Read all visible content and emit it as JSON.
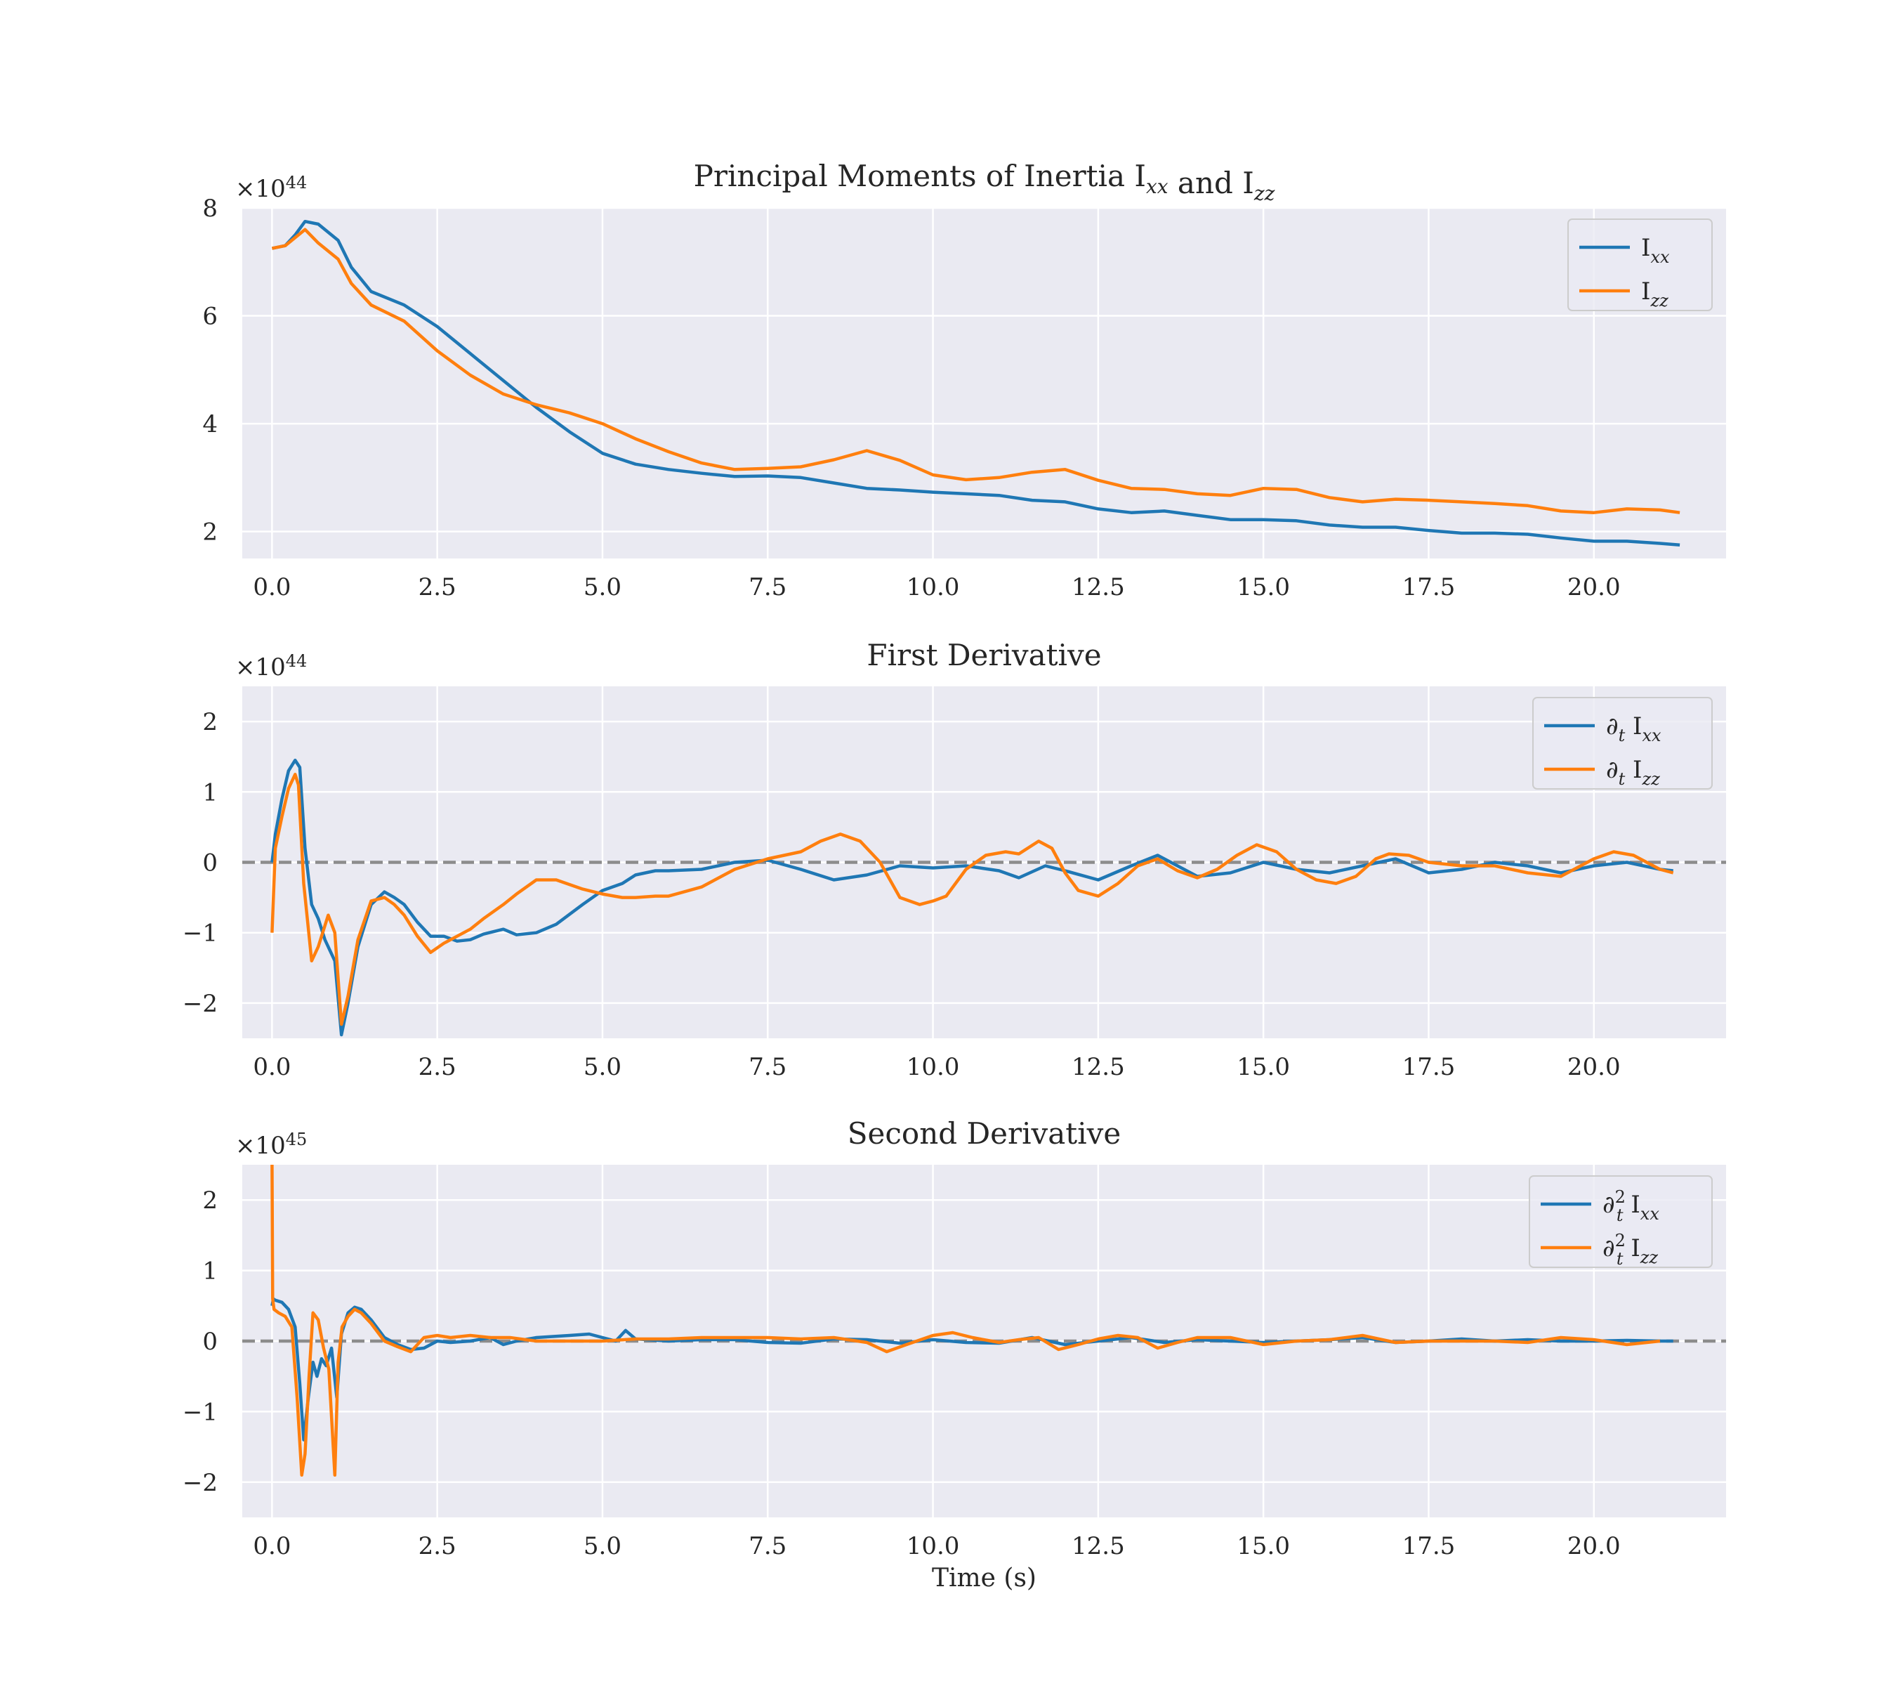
{
  "figure": {
    "xlabel": "Time (s)",
    "colors": {
      "Ixx": "#1f77b4",
      "Izz": "#ff7f0e",
      "zero_line": "#8c8c8c",
      "axes_bg": "#eaeaf2",
      "grid": "#ffffff"
    }
  },
  "chart_data": [
    {
      "type": "line",
      "title": "Principal Moments of Inertia Ixx and Izz",
      "xlabel": "",
      "ylabel": "",
      "multiplier": "×10^44",
      "xlim": [
        -0.45,
        22.0
      ],
      "ylim": [
        1.5,
        8.0
      ],
      "xticks": [
        "0.0",
        "2.5",
        "5.0",
        "7.5",
        "10.0",
        "12.5",
        "15.0",
        "17.5",
        "20.0"
      ],
      "yticks": [
        "2",
        "4",
        "6",
        "8"
      ],
      "legend": "top-right",
      "grid": true,
      "series": [
        {
          "name": "Ixx",
          "x": [
            0.0,
            0.2,
            0.35,
            0.5,
            0.7,
            1.0,
            1.2,
            1.5,
            2.0,
            2.5,
            3.0,
            3.5,
            4.0,
            4.5,
            5.0,
            5.5,
            6.0,
            6.5,
            7.0,
            7.5,
            8.0,
            8.5,
            9.0,
            9.5,
            10.0,
            10.5,
            11.0,
            11.5,
            12.0,
            12.5,
            13.0,
            13.5,
            14.0,
            14.5,
            15.0,
            15.5,
            16.0,
            16.5,
            17.0,
            17.5,
            18.0,
            18.5,
            19.0,
            19.5,
            20.0,
            20.5,
            21.0,
            21.3
          ],
          "values": [
            7.25,
            7.3,
            7.5,
            7.75,
            7.7,
            7.4,
            6.9,
            6.45,
            6.2,
            5.8,
            5.3,
            4.8,
            4.3,
            3.85,
            3.45,
            3.25,
            3.15,
            3.08,
            3.02,
            3.03,
            3.0,
            2.9,
            2.8,
            2.77,
            2.73,
            2.7,
            2.67,
            2.58,
            2.55,
            2.42,
            2.35,
            2.38,
            2.3,
            2.22,
            2.22,
            2.2,
            2.12,
            2.08,
            2.08,
            2.02,
            1.97,
            1.97,
            1.95,
            1.88,
            1.82,
            1.82,
            1.78,
            1.75
          ]
        },
        {
          "name": "Izz",
          "x": [
            0.0,
            0.2,
            0.35,
            0.5,
            0.7,
            1.0,
            1.2,
            1.5,
            2.0,
            2.5,
            3.0,
            3.5,
            4.0,
            4.5,
            5.0,
            5.5,
            6.0,
            6.5,
            7.0,
            7.5,
            8.0,
            8.5,
            9.0,
            9.5,
            10.0,
            10.5,
            11.0,
            11.5,
            12.0,
            12.5,
            13.0,
            13.5,
            14.0,
            14.5,
            15.0,
            15.5,
            16.0,
            16.5,
            17.0,
            17.5,
            18.0,
            18.5,
            19.0,
            19.5,
            20.0,
            20.5,
            21.0,
            21.3
          ],
          "values": [
            7.25,
            7.3,
            7.45,
            7.6,
            7.35,
            7.05,
            6.6,
            6.2,
            5.9,
            5.35,
            4.9,
            4.55,
            4.35,
            4.2,
            4.0,
            3.72,
            3.48,
            3.27,
            3.15,
            3.17,
            3.2,
            3.33,
            3.5,
            3.32,
            3.05,
            2.96,
            3.0,
            3.1,
            3.15,
            2.95,
            2.8,
            2.78,
            2.7,
            2.67,
            2.8,
            2.78,
            2.63,
            2.55,
            2.6,
            2.58,
            2.55,
            2.52,
            2.48,
            2.38,
            2.35,
            2.42,
            2.4,
            2.35
          ]
        }
      ]
    },
    {
      "type": "line",
      "title": "First Derivative",
      "xlabel": "",
      "ylabel": "",
      "multiplier": "×10^44",
      "xlim": [
        -0.45,
        22.0
      ],
      "ylim": [
        -2.5,
        2.5
      ],
      "xticks": [
        "0.0",
        "2.5",
        "5.0",
        "7.5",
        "10.0",
        "12.5",
        "15.0",
        "17.5",
        "20.0"
      ],
      "yticks": [
        "−2",
        "−1",
        "0",
        "1",
        "2"
      ],
      "zero_line": true,
      "legend": "top-right",
      "grid": true,
      "series": [
        {
          "name": "∂t Ixx",
          "x": [
            0.0,
            0.05,
            0.15,
            0.25,
            0.35,
            0.42,
            0.5,
            0.6,
            0.7,
            0.8,
            0.95,
            1.05,
            1.15,
            1.3,
            1.5,
            1.7,
            1.85,
            2.0,
            2.2,
            2.4,
            2.6,
            2.8,
            3.0,
            3.2,
            3.5,
            3.7,
            4.0,
            4.3,
            4.7,
            5.0,
            5.3,
            5.5,
            5.8,
            6.0,
            6.5,
            7.0,
            7.5,
            8.0,
            8.5,
            9.0,
            9.5,
            10.0,
            10.5,
            11.0,
            11.3,
            11.7,
            12.0,
            12.5,
            13.0,
            13.4,
            13.7,
            14.0,
            14.5,
            15.0,
            15.5,
            16.0,
            16.5,
            17.0,
            17.5,
            18.0,
            18.5,
            19.0,
            19.5,
            20.0,
            20.5,
            21.0,
            21.2
          ],
          "values": [
            0.0,
            0.4,
            0.9,
            1.3,
            1.45,
            1.35,
            0.2,
            -0.6,
            -0.8,
            -1.1,
            -1.4,
            -2.45,
            -2.0,
            -1.2,
            -0.6,
            -0.42,
            -0.5,
            -0.6,
            -0.85,
            -1.05,
            -1.05,
            -1.12,
            -1.1,
            -1.02,
            -0.95,
            -1.03,
            -1.0,
            -0.88,
            -0.6,
            -0.4,
            -0.3,
            -0.18,
            -0.12,
            -0.12,
            -0.1,
            0.0,
            0.03,
            -0.1,
            -0.25,
            -0.18,
            -0.05,
            -0.08,
            -0.05,
            -0.12,
            -0.22,
            -0.05,
            -0.12,
            -0.25,
            -0.05,
            0.1,
            -0.05,
            -0.2,
            -0.15,
            0.0,
            -0.1,
            -0.15,
            -0.05,
            0.05,
            -0.15,
            -0.1,
            0.0,
            -0.05,
            -0.15,
            -0.05,
            0.0,
            -0.1,
            -0.12
          ]
        },
        {
          "name": "∂t Izz",
          "x": [
            0.0,
            0.05,
            0.15,
            0.25,
            0.35,
            0.4,
            0.48,
            0.6,
            0.7,
            0.85,
            0.95,
            1.05,
            1.15,
            1.3,
            1.5,
            1.7,
            1.85,
            2.0,
            2.2,
            2.4,
            2.6,
            2.8,
            3.0,
            3.2,
            3.5,
            3.7,
            4.0,
            4.3,
            4.7,
            5.0,
            5.3,
            5.5,
            5.8,
            6.0,
            6.5,
            7.0,
            7.5,
            8.0,
            8.3,
            8.6,
            8.9,
            9.2,
            9.5,
            9.8,
            10.0,
            10.2,
            10.5,
            10.8,
            11.1,
            11.3,
            11.6,
            11.8,
            12.0,
            12.2,
            12.5,
            12.8,
            13.1,
            13.4,
            13.7,
            14.0,
            14.3,
            14.6,
            14.9,
            15.2,
            15.5,
            15.8,
            16.1,
            16.4,
            16.7,
            16.9,
            17.2,
            17.5,
            18.0,
            18.5,
            19.0,
            19.5,
            20.0,
            20.3,
            20.6,
            21.0,
            21.2
          ],
          "values": [
            -1.0,
            0.2,
            0.65,
            1.05,
            1.25,
            1.1,
            -0.3,
            -1.4,
            -1.2,
            -0.75,
            -1.0,
            -2.3,
            -1.9,
            -1.1,
            -0.55,
            -0.5,
            -0.6,
            -0.75,
            -1.05,
            -1.28,
            -1.15,
            -1.05,
            -0.95,
            -0.8,
            -0.6,
            -0.45,
            -0.25,
            -0.25,
            -0.38,
            -0.45,
            -0.5,
            -0.5,
            -0.48,
            -0.48,
            -0.35,
            -0.1,
            0.05,
            0.15,
            0.3,
            0.4,
            0.3,
            0.0,
            -0.5,
            -0.6,
            -0.55,
            -0.48,
            -0.1,
            0.1,
            0.15,
            0.12,
            0.3,
            0.2,
            -0.15,
            -0.4,
            -0.48,
            -0.3,
            -0.05,
            0.05,
            -0.12,
            -0.22,
            -0.1,
            0.1,
            0.25,
            0.15,
            -0.1,
            -0.25,
            -0.3,
            -0.2,
            0.05,
            0.12,
            0.1,
            0.0,
            -0.05,
            -0.05,
            -0.15,
            -0.2,
            0.05,
            0.15,
            0.1,
            -0.1,
            -0.15
          ]
        }
      ]
    },
    {
      "type": "line",
      "title": "Second Derivative",
      "xlabel": "Time (s)",
      "ylabel": "",
      "multiplier": "×10^45",
      "xlim": [
        -0.45,
        22.0
      ],
      "ylim": [
        -2.5,
        2.5
      ],
      "xticks": [
        "0.0",
        "2.5",
        "5.0",
        "7.5",
        "10.0",
        "12.5",
        "15.0",
        "17.5",
        "20.0"
      ],
      "yticks": [
        "−2",
        "−1",
        "0",
        "1",
        "2"
      ],
      "zero_line": true,
      "legend": "top-right",
      "grid": true,
      "series": [
        {
          "name": "∂t² Ixx",
          "x": [
            0.0,
            0.02,
            0.05,
            0.15,
            0.25,
            0.35,
            0.42,
            0.48,
            0.55,
            0.62,
            0.68,
            0.75,
            0.82,
            0.9,
            0.98,
            1.05,
            1.15,
            1.25,
            1.35,
            1.5,
            1.7,
            1.9,
            2.1,
            2.3,
            2.5,
            2.7,
            3.0,
            3.3,
            3.5,
            3.7,
            4.0,
            4.5,
            4.8,
            5.0,
            5.2,
            5.35,
            5.5,
            6.0,
            6.5,
            7.0,
            7.5,
            8.0,
            8.5,
            9.0,
            9.5,
            10.0,
            10.5,
            11.0,
            11.5,
            12.0,
            12.5,
            13.0,
            13.5,
            14.0,
            14.5,
            15.0,
            15.5,
            16.0,
            16.5,
            17.0,
            17.5,
            18.0,
            18.5,
            19.0,
            19.5,
            20.0,
            20.5,
            21.0,
            21.2
          ],
          "values": [
            0.5,
            0.6,
            0.58,
            0.55,
            0.45,
            0.2,
            -0.6,
            -1.4,
            -0.8,
            -0.3,
            -0.5,
            -0.25,
            -0.35,
            -0.1,
            -0.8,
            0.1,
            0.4,
            0.48,
            0.45,
            0.3,
            0.05,
            -0.05,
            -0.12,
            -0.1,
            0.0,
            -0.02,
            0.0,
            0.05,
            -0.05,
            0.0,
            0.05,
            0.08,
            0.1,
            0.05,
            0.0,
            0.15,
            0.03,
            0.0,
            0.02,
            0.02,
            -0.02,
            -0.03,
            0.03,
            0.02,
            -0.03,
            0.02,
            -0.02,
            -0.03,
            0.05,
            -0.05,
            0.0,
            0.05,
            -0.02,
            0.02,
            0.0,
            -0.02,
            0.0,
            0.02,
            0.05,
            -0.02,
            0.0,
            0.03,
            0.0,
            0.02,
            0.0,
            0.0,
            0.01,
            0.0,
            0.0
          ]
        },
        {
          "name": "∂t² Izz",
          "x": [
            0.0,
            0.01,
            0.03,
            0.1,
            0.2,
            0.3,
            0.38,
            0.45,
            0.5,
            0.56,
            0.62,
            0.7,
            0.78,
            0.86,
            0.95,
            1.0,
            1.06,
            1.15,
            1.25,
            1.35,
            1.5,
            1.7,
            1.9,
            2.1,
            2.3,
            2.5,
            2.7,
            3.0,
            3.3,
            3.6,
            4.0,
            4.5,
            5.0,
            5.5,
            6.0,
            6.5,
            7.0,
            7.5,
            8.0,
            8.5,
            9.0,
            9.3,
            9.6,
            10.0,
            10.3,
            10.6,
            11.0,
            11.3,
            11.6,
            11.9,
            12.2,
            12.5,
            12.8,
            13.1,
            13.4,
            13.7,
            14.0,
            14.5,
            15.0,
            15.5,
            16.0,
            16.5,
            17.0,
            17.5,
            18.0,
            18.5,
            19.0,
            19.5,
            20.0,
            20.5,
            21.0
          ],
          "values": [
            2.5,
            0.6,
            0.45,
            0.4,
            0.35,
            0.2,
            -0.8,
            -1.9,
            -1.6,
            -0.5,
            0.4,
            0.3,
            -0.1,
            -0.4,
            -1.9,
            -0.3,
            0.2,
            0.35,
            0.45,
            0.4,
            0.25,
            0.0,
            -0.08,
            -0.15,
            0.05,
            0.08,
            0.05,
            0.08,
            0.05,
            0.05,
            0.0,
            0.0,
            0.0,
            0.03,
            0.03,
            0.05,
            0.05,
            0.05,
            0.03,
            0.05,
            -0.02,
            -0.15,
            -0.05,
            0.08,
            0.12,
            0.05,
            -0.02,
            0.02,
            0.05,
            -0.12,
            -0.05,
            0.03,
            0.08,
            0.05,
            -0.1,
            -0.02,
            0.05,
            0.05,
            -0.05,
            0.0,
            0.02,
            0.08,
            -0.02,
            0.0,
            0.0,
            0.0,
            -0.02,
            0.05,
            0.02,
            -0.05,
            0.0
          ]
        }
      ]
    }
  ]
}
